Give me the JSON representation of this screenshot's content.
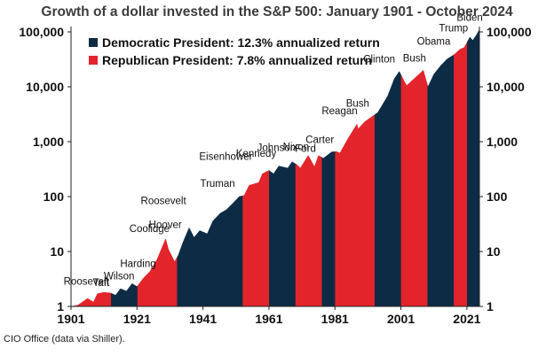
{
  "title": "Growth of a dollar invested in the S&P 500: January 1901 - October 2024",
  "source": "CIO Office (data via Shiller).",
  "chart_data": {
    "type": "area",
    "title": "Growth of a dollar invested in the S&P 500: January 1901 - October 2024",
    "xlabel": "",
    "ylabel": "",
    "yscale": "log",
    "xlim": [
      1901,
      2024.8
    ],
    "ylim": [
      1,
      100000
    ],
    "x_ticks": [
      "1901",
      "1921",
      "1941",
      "1961",
      "1981",
      "2001",
      "2021"
    ],
    "y_ticks": [
      "1",
      "10",
      "100",
      "1,000",
      "10,000",
      "100,000"
    ],
    "colors": {
      "democratic": "#0d2b45",
      "republican": "#e3242b"
    },
    "legend": [
      {
        "party": "democratic",
        "label": "Democratic President: 12.3% annualized return"
      },
      {
        "party": "republican",
        "label": "Republican President: 7.8% annualized return"
      }
    ],
    "presidents": [
      {
        "name": "Roosevelt",
        "start": 1901.0,
        "end": 1909.2,
        "party": "republican"
      },
      {
        "name": "Taft",
        "start": 1909.2,
        "end": 1913.2,
        "party": "republican"
      },
      {
        "name": "Wilson",
        "start": 1913.2,
        "end": 1921.2,
        "party": "democratic"
      },
      {
        "name": "Harding",
        "start": 1921.2,
        "end": 1923.6,
        "party": "republican"
      },
      {
        "name": "Coolidge",
        "start": 1923.6,
        "end": 1929.2,
        "party": "republican"
      },
      {
        "name": "Hoover",
        "start": 1929.2,
        "end": 1933.2,
        "party": "republican"
      },
      {
        "name": "Roosevelt",
        "start": 1933.2,
        "end": 1945.3,
        "party": "democratic"
      },
      {
        "name": "Truman",
        "start": 1945.3,
        "end": 1953.1,
        "party": "democratic"
      },
      {
        "name": "Eisenhower",
        "start": 1953.1,
        "end": 1961.1,
        "party": "republican"
      },
      {
        "name": "Kennedy",
        "start": 1961.1,
        "end": 1963.9,
        "party": "democratic"
      },
      {
        "name": "Johnson",
        "start": 1963.9,
        "end": 1969.1,
        "party": "democratic"
      },
      {
        "name": "Nixon",
        "start": 1969.1,
        "end": 1974.6,
        "party": "republican"
      },
      {
        "name": "Ford",
        "start": 1974.6,
        "end": 1977.1,
        "party": "republican"
      },
      {
        "name": "Carter",
        "start": 1977.1,
        "end": 1981.1,
        "party": "democratic"
      },
      {
        "name": "Reagan",
        "start": 1981.1,
        "end": 1989.1,
        "party": "republican"
      },
      {
        "name": "Bush",
        "start": 1989.1,
        "end": 1993.1,
        "party": "republican"
      },
      {
        "name": "Clinton",
        "start": 1993.1,
        "end": 2001.1,
        "party": "democratic"
      },
      {
        "name": "Bush",
        "start": 2001.1,
        "end": 2009.1,
        "party": "republican"
      },
      {
        "name": "Obama",
        "start": 2009.1,
        "end": 2017.1,
        "party": "democratic"
      },
      {
        "name": "Trump",
        "start": 2017.1,
        "end": 2021.1,
        "party": "republican"
      },
      {
        "name": "Biden",
        "start": 2021.1,
        "end": 2024.8,
        "party": "democratic"
      }
    ],
    "series": [
      {
        "name": "Growth of $1",
        "x": [
          1901,
          1903,
          1904,
          1906,
          1907.8,
          1909,
          1911,
          1913,
          1914.5,
          1916,
          1917.8,
          1919.5,
          1921,
          1923,
          1925,
          1927,
          1928.5,
          1929.7,
          1930.5,
          1932.4,
          1933.5,
          1935,
          1936.8,
          1938.3,
          1940,
          1942.3,
          1944,
          1946.3,
          1948,
          1950,
          1952,
          1953.5,
          1955,
          1957.9,
          1959,
          1961,
          1962.4,
          1964,
          1966.7,
          1968,
          1969.5,
          1970.5,
          1972.9,
          1974.8,
          1976,
          1977.5,
          1980,
          1981.5,
          1982.5,
          1985,
          1987.7,
          1988,
          1990,
          1992,
          1994,
          1997,
          1999,
          2000.5,
          2002.7,
          2005,
          2007.8,
          2009.2,
          2011,
          2013,
          2015,
          2017,
          2018.9,
          2020.2,
          2021.9,
          2022.8,
          2024,
          2024.8
        ],
        "values": [
          1.0,
          1.05,
          1.15,
          1.4,
          1.2,
          1.7,
          1.8,
          1.75,
          1.6,
          2.1,
          1.9,
          2.6,
          2.3,
          3.3,
          4.4,
          7.0,
          11.5,
          17.0,
          11.0,
          6.5,
          8.5,
          15.0,
          27.0,
          18.0,
          24.0,
          21.0,
          36.0,
          50.0,
          57.0,
          75.0,
          100.0,
          105.0,
          160.0,
          180.0,
          260.0,
          300.0,
          260.0,
          360.0,
          330.0,
          430.0,
          380.0,
          330.0,
          560.0,
          350.0,
          560.0,
          500.0,
          650.0,
          660.0,
          620.0,
          1150.0,
          2100.0,
          1700.0,
          2300.0,
          2800.0,
          3400.0,
          6800.0,
          14000.0,
          19000.0,
          10500.0,
          14000.0,
          20000.0,
          10000.0,
          17000.0,
          24000.0,
          32000.0,
          38000.0,
          48000.0,
          52000.0,
          80000.0,
          70000.0,
          90000.0,
          110000.0
        ]
      }
    ]
  }
}
